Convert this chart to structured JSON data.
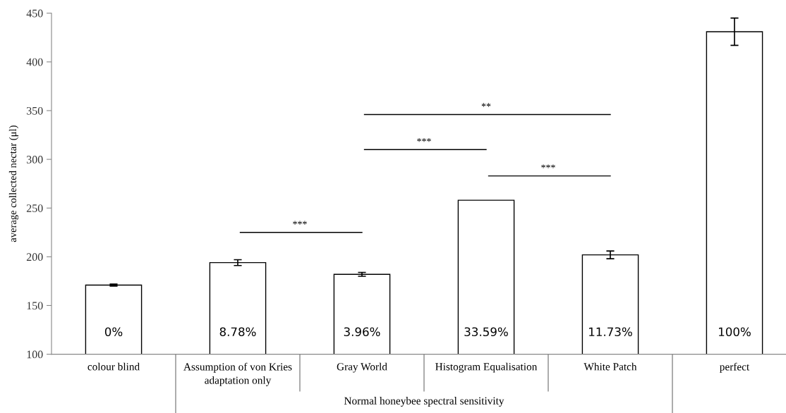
{
  "chart_data": {
    "type": "bar",
    "ylabel": "average collected nectar (μl)",
    "categories": [
      "colour blind",
      "Assumption of von Kries adaptation only",
      "Gray World",
      "Histogram Equalisation",
      "White Patch",
      "perfect"
    ],
    "values": [
      171,
      194,
      182,
      258,
      202,
      431
    ],
    "errors": [
      1,
      3,
      2,
      null,
      4,
      14
    ],
    "color": "#ffffff",
    "ylim": [
      100,
      450
    ],
    "yticks": [
      100,
      150,
      200,
      250,
      300,
      350,
      400,
      450
    ],
    "grid": false,
    "annotations": [
      "***",
      "**",
      "***",
      "***",
      "Normal honeybee spectral sensitivity",
      "0%",
      "8.78%",
      "3.96%",
      "33.59%",
      "11.73%",
      "100%"
    ]
  }
}
